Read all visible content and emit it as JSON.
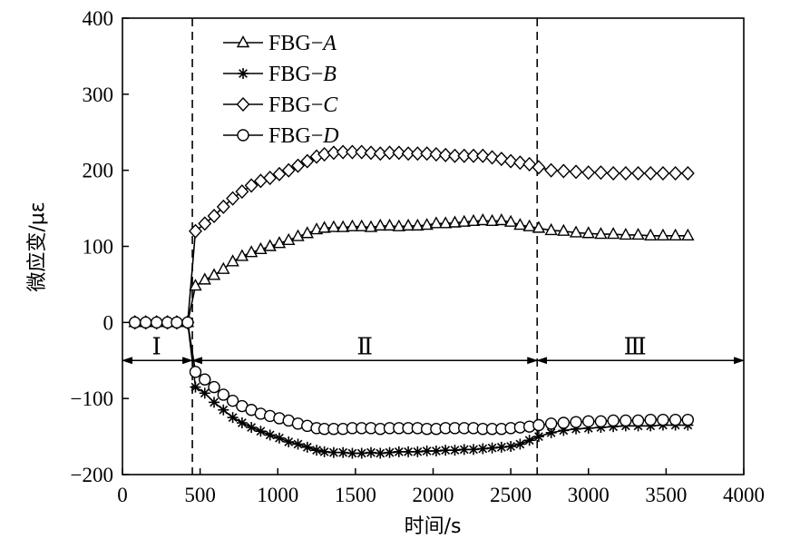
{
  "chart_data": {
    "type": "line",
    "title": "",
    "xlabel": "时间/s",
    "ylabel": "微应变/με",
    "xlim": [
      0,
      4000
    ],
    "ylim": [
      -200,
      400
    ],
    "xticks": [
      "0",
      "500",
      "1000",
      "1500",
      "2000",
      "2500",
      "3000",
      "3500",
      "4000"
    ],
    "yticks": [
      "−200",
      "−100",
      "0",
      "100",
      "200",
      "300",
      "400"
    ],
    "grid": false,
    "legend_position": "top-left",
    "vlines": [
      450,
      2670
    ],
    "regions": [
      {
        "label": "Ⅰ",
        "x_start": 0,
        "x_end": 450,
        "label_x": 220
      },
      {
        "label": "Ⅱ",
        "x_start": 450,
        "x_end": 2670,
        "label_x": 1560
      },
      {
        "label": "Ⅲ",
        "x_start": 2670,
        "x_end": 4000,
        "label_x": 3300
      }
    ],
    "region_arrow_y": -50,
    "region_label_y": -30,
    "x": [
      80,
      150,
      220,
      290,
      350,
      420,
      470,
      530,
      590,
      650,
      710,
      770,
      830,
      890,
      950,
      1010,
      1070,
      1130,
      1190,
      1250,
      1300,
      1360,
      1420,
      1480,
      1540,
      1600,
      1660,
      1720,
      1780,
      1840,
      1900,
      1960,
      2020,
      2080,
      2140,
      2200,
      2260,
      2320,
      2380,
      2440,
      2500,
      2560,
      2620,
      2680,
      2760,
      2840,
      2920,
      3000,
      3080,
      3160,
      3240,
      3320,
      3400,
      3480,
      3560,
      3640
    ],
    "series": [
      {
        "name_prefix": "FBG−",
        "name_italic": "A",
        "marker": "triangle",
        "values": [
          0,
          0,
          0,
          0,
          0,
          0,
          48,
          56,
          62,
          70,
          80,
          87,
          92,
          96,
          100,
          104,
          108,
          113,
          117,
          122,
          124,
          125,
          125,
          126,
          126,
          125,
          127,
          127,
          126,
          127,
          127,
          128,
          130,
          130,
          131,
          132,
          133,
          134,
          133,
          134,
          132,
          128,
          126,
          124,
          121,
          120,
          118,
          117,
          116,
          116,
          115,
          115,
          114,
          114,
          114,
          114
        ]
      },
      {
        "name_prefix": "FBG−",
        "name_italic": "B",
        "marker": "star",
        "values": [
          0,
          0,
          0,
          0,
          0,
          0,
          -85,
          -93,
          -105,
          -115,
          -125,
          -132,
          -138,
          -143,
          -148,
          -152,
          -157,
          -160,
          -164,
          -168,
          -170,
          -171,
          -171,
          -172,
          -172,
          -171,
          -172,
          -171,
          -170,
          -170,
          -170,
          -169,
          -169,
          -168,
          -168,
          -167,
          -167,
          -166,
          -165,
          -164,
          -163,
          -160,
          -155,
          -150,
          -145,
          -142,
          -140,
          -139,
          -138,
          -137,
          -136,
          -136,
          -136,
          -135,
          -135,
          -135
        ]
      },
      {
        "name_prefix": "FBG−",
        "name_italic": "C",
        "marker": "diamond",
        "values": [
          0,
          0,
          0,
          0,
          0,
          0,
          120,
          130,
          140,
          152,
          163,
          172,
          180,
          186,
          190,
          195,
          200,
          206,
          212,
          218,
          221,
          223,
          224,
          224,
          224,
          223,
          222,
          223,
          223,
          222,
          222,
          222,
          221,
          220,
          219,
          219,
          219,
          219,
          217,
          215,
          212,
          210,
          208,
          204,
          200,
          199,
          198,
          197,
          197,
          196,
          196,
          196,
          196,
          196,
          196,
          196
        ]
      },
      {
        "name_prefix": "FBG−",
        "name_italic": "D",
        "marker": "circle",
        "values": [
          0,
          0,
          0,
          0,
          0,
          0,
          -65,
          -75,
          -85,
          -95,
          -103,
          -110,
          -115,
          -120,
          -123,
          -126,
          -129,
          -133,
          -136,
          -139,
          -140,
          -140,
          -140,
          -139,
          -139,
          -139,
          -140,
          -139,
          -139,
          -139,
          -139,
          -140,
          -140,
          -139,
          -139,
          -139,
          -139,
          -140,
          -140,
          -140,
          -139,
          -138,
          -137,
          -135,
          -133,
          -132,
          -131,
          -130,
          -130,
          -129,
          -129,
          -129,
          -128,
          -128,
          -128,
          -128
        ]
      }
    ]
  }
}
